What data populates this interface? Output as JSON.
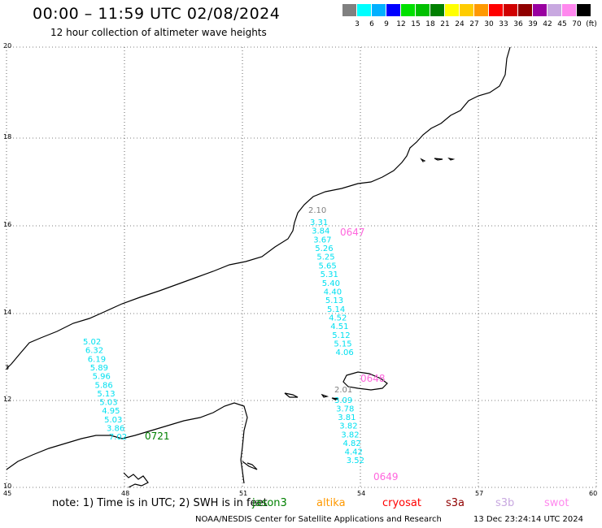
{
  "header": {
    "title": "00:00 – 11:59 UTC 02/08/2024",
    "subtitle": "12 hour collection of altimeter wave heights"
  },
  "scale": {
    "unit": "(ft)",
    "colors": [
      "#808080",
      "#00ffff",
      "#00b0ff",
      "#0000ff",
      "#00e000",
      "#00c000",
      "#008000",
      "#ffff00",
      "#ffcc00",
      "#ff9900",
      "#ff0000",
      "#d00000",
      "#900000",
      "#9900a0",
      "#c8a8e0",
      "#ff88ee",
      "#000000"
    ],
    "labels": [
      "3",
      "6",
      "9",
      "12",
      "15",
      "18",
      "21",
      "24",
      "27",
      "30",
      "33",
      "36",
      "39",
      "42",
      "45",
      "70"
    ]
  },
  "axes": {
    "lat_labels": [
      "20",
      "18",
      "16",
      "14",
      "12",
      "10"
    ],
    "lon_labels": [
      "45",
      "48",
      "51",
      "54",
      "57",
      "60"
    ],
    "side_label": "3"
  },
  "tracks": [
    {
      "color": "#00e0f0",
      "values": [
        "5.02",
        "6.32",
        "6.19",
        "5.89",
        "5.96",
        "5.86",
        "5.13",
        "5.03",
        "4.95",
        "5.03",
        "3.86",
        "7.02"
      ]
    },
    {
      "color": "#00e0f0",
      "values": [
        "3.31",
        "3.84",
        "3.67",
        "5.26",
        "5.25",
        "5.65",
        "5.31",
        "5.40",
        "4.40",
        "5.13",
        "5.14",
        "4.52",
        "4.51",
        "5.12",
        "5.15",
        "4.06"
      ]
    },
    {
      "color": "#00e0f0",
      "values": [
        "3.09",
        "3.78",
        "3.81",
        "3.82",
        "3.82",
        "4.82",
        "4.42",
        "3.52"
      ]
    },
    {
      "color": "#808080",
      "values": [
        "2.10",
        "2.01"
      ]
    }
  ],
  "time_labels": [
    {
      "text": "0721",
      "color": "#008000"
    },
    {
      "text": "0647",
      "color": "#ff66dd"
    },
    {
      "text": "0648",
      "color": "#ff66dd"
    },
    {
      "text": "0649",
      "color": "#ff66dd"
    }
  ],
  "footer": {
    "note": "note: 1) Time is in UTC; 2) SWH is in feet",
    "satellites": [
      {
        "name": "jason3",
        "color": "#008000"
      },
      {
        "name": "altika",
        "color": "#ff9900"
      },
      {
        "name": "cryosat",
        "color": "#ff0000"
      },
      {
        "name": "s3a",
        "color": "#900000"
      },
      {
        "name": "s3b",
        "color": "#c8a8e0"
      },
      {
        "name": "swot",
        "color": "#ff88ee"
      }
    ],
    "credit": "NOAA/NESDIS Center for Satellite Applications and Research",
    "timestamp": "13 Dec 23:24:14 UTC 2024"
  }
}
